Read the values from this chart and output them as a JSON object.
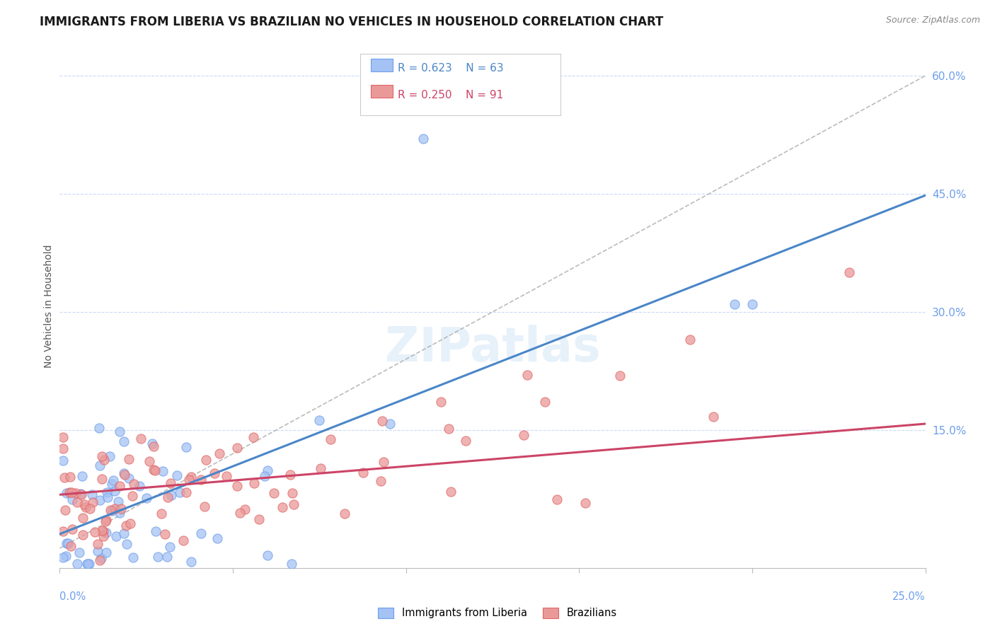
{
  "title": "IMMIGRANTS FROM LIBERIA VS BRAZILIAN NO VEHICLES IN HOUSEHOLD CORRELATION CHART",
  "source": "Source: ZipAtlas.com",
  "ylabel": "No Vehicles in Household",
  "y_ticks": [
    0.15,
    0.3,
    0.45,
    0.6
  ],
  "y_tick_labels": [
    "15.0%",
    "30.0%",
    "45.0%",
    "60.0%"
  ],
  "x_min": 0.0,
  "x_max": 0.25,
  "y_min": -0.025,
  "y_max": 0.64,
  "blue_R": 0.623,
  "blue_N": 63,
  "pink_R": 0.25,
  "pink_N": 91,
  "blue_color": "#a4c2f4",
  "pink_color": "#ea9999",
  "blue_edge_color": "#6d9eeb",
  "pink_edge_color": "#e06666",
  "blue_line_color": "#4a86c8",
  "pink_line_color": "#cc4466",
  "grid_color": "#c9daf8",
  "legend_blue_text_color": "#4a86c8",
  "legend_pink_text_color": "#cc4466",
  "right_tick_color": "#6d9eeb",
  "x_label_color": "#6d9eeb",
  "blue_trend_m": 1.72,
  "blue_trend_b": 0.018,
  "pink_trend_m": 0.36,
  "pink_trend_b": 0.068,
  "gray_dash_m": 2.4,
  "gray_dash_b": 0.0
}
